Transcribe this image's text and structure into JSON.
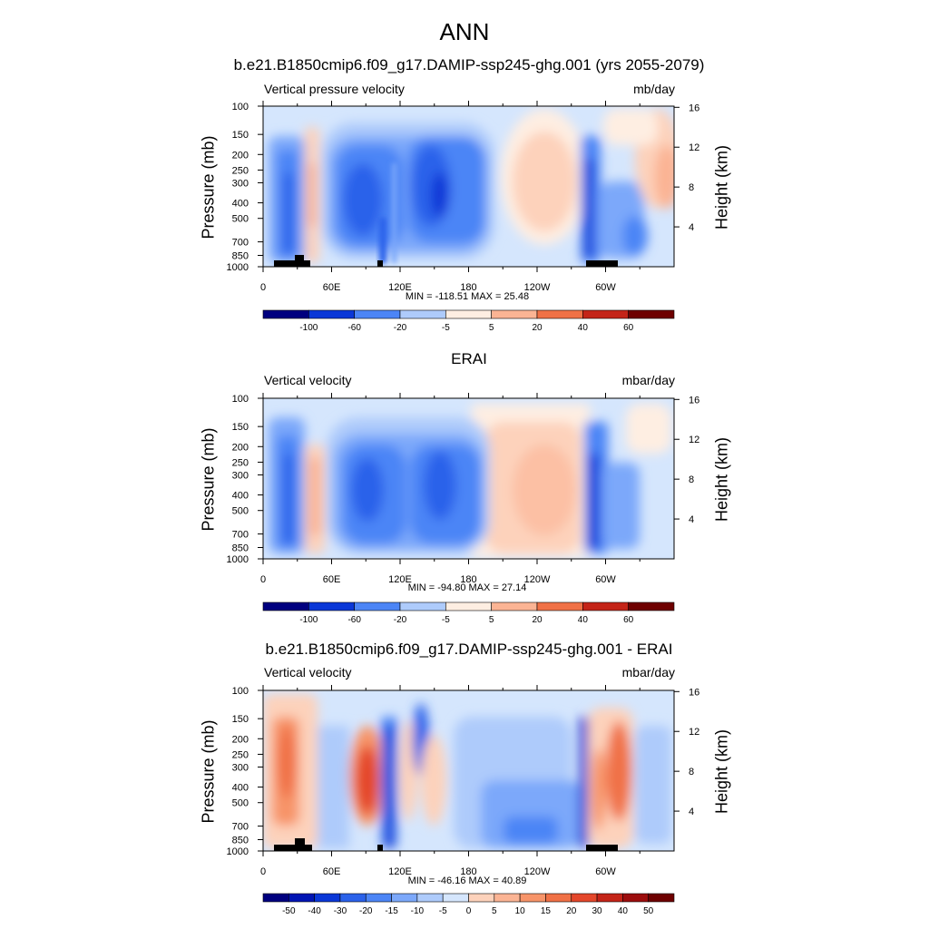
{
  "figure": {
    "title": "ANN",
    "panels": [
      {
        "title": "b.e21.B1850cmip6.f09_g17.DAMIP-ssp245-ghg.001 (yrs 2055-2079)",
        "left_string": "Vertical pressure velocity",
        "right_string": "mb/day",
        "left_axis_label": "Pressure (mb)",
        "right_axis_label": "Height (km)",
        "min_max": "MIN = -118.51  MAX =  25.48",
        "colorbar_labels": [
          "-100",
          "-60",
          "-20",
          "-5",
          "5",
          "20",
          "40",
          "60"
        ],
        "shows_topography": true
      },
      {
        "title": "ERAI",
        "left_string": "Vertical velocity",
        "right_string": "mbar/day",
        "left_axis_label": "Pressure (mb)",
        "right_axis_label": "Height (km)",
        "min_max": "MIN = -94.80  MAX =  27.14",
        "colorbar_labels": [
          "-100",
          "-60",
          "-20",
          "-5",
          "5",
          "20",
          "40",
          "60"
        ],
        "shows_topography": false
      },
      {
        "title": "b.e21.B1850cmip6.f09_g17.DAMIP-ssp245-ghg.001 - ERAI",
        "left_string": "Vertical velocity",
        "right_string": "mbar/day",
        "left_axis_label": "Pressure (mb)",
        "right_axis_label": "Height (km)",
        "min_max": "MIN = -46.16  MAX =  40.89",
        "colorbar_labels": [
          "-50",
          "-40",
          "-30",
          "-20",
          "-15",
          "-10",
          "-5",
          "0",
          "5",
          "10",
          "15",
          "20",
          "30",
          "40",
          "50"
        ],
        "shows_topography": true
      }
    ]
  },
  "chart_data": [
    {
      "type": "heatmap",
      "title": "b.e21.B1850cmip6.f09_g17.DAMIP-ssp245-ghg.001 (yrs 2055-2079)",
      "ylabel": "Pressure (mb)",
      "y2label": "Height (km)",
      "x_ticks": [
        "0",
        "60E",
        "120E",
        "180",
        "120W",
        "60W"
      ],
      "y_ticks": [
        "100",
        "150",
        "200",
        "250",
        "300",
        "400",
        "500",
        "700",
        "850",
        "1000"
      ],
      "y2_ticks": [
        "4",
        "8",
        "12",
        "16"
      ],
      "ylim": [
        1000,
        100
      ],
      "y_scale": "log",
      "colorbar_levels": [
        -100,
        -60,
        -20,
        -5,
        5,
        20,
        40,
        60
      ],
      "min": -118.51,
      "max": 25.48,
      "palette": [
        "#00007f",
        "#0015b4",
        "#0a37d7",
        "#2b62ea",
        "#4c85f6",
        "#7ca8fa",
        "#aecbfb",
        "#d5e6fd",
        "#feeee2",
        "#fdd2bb",
        "#fbb494",
        "#f79469",
        "#f07146",
        "#e4472b",
        "#c42418",
        "#9c0d0d",
        "#6e0000"
      ],
      "features": [
        {
          "lon": 20,
          "lat_band": "upper-mid",
          "value": -40
        },
        {
          "lon": 40,
          "lat_band": "mid",
          "value": 15
        },
        {
          "lon": 95,
          "lat_band": "mid",
          "value": -60
        },
        {
          "lon": 150,
          "lat_band": "mid",
          "value": -80
        },
        {
          "lon": 210,
          "lat_band": "mid",
          "value": 10
        },
        {
          "lon": 285,
          "lat_band": "mid",
          "value": -60
        },
        {
          "lon": 330,
          "lat_band": "upper",
          "value": 10
        }
      ]
    },
    {
      "type": "heatmap",
      "title": "ERAI",
      "ylabel": "Pressure (mb)",
      "y2label": "Height (km)",
      "x_ticks": [
        "0",
        "60E",
        "120E",
        "180",
        "120W",
        "60W"
      ],
      "y_ticks": [
        "100",
        "150",
        "200",
        "250",
        "300",
        "400",
        "500",
        "700",
        "850",
        "1000"
      ],
      "y2_ticks": [
        "4",
        "8",
        "12",
        "16"
      ],
      "ylim": [
        1000,
        100
      ],
      "y_scale": "log",
      "colorbar_levels": [
        -100,
        -60,
        -20,
        -5,
        5,
        20,
        40,
        60
      ],
      "min": -94.8,
      "max": 27.14,
      "palette": [
        "#00007f",
        "#0015b4",
        "#0a37d7",
        "#2b62ea",
        "#4c85f6",
        "#7ca8fa",
        "#aecbfb",
        "#d5e6fd",
        "#feeee2",
        "#fdd2bb",
        "#fbb494",
        "#f79469",
        "#f07146",
        "#e4472b",
        "#c42418",
        "#9c0d0d",
        "#6e0000"
      ],
      "features": [
        {
          "lon": 20,
          "lat_band": "mid",
          "value": -50
        },
        {
          "lon": 40,
          "lat_band": "mid",
          "value": 18
        },
        {
          "lon": 100,
          "lat_band": "mid",
          "value": -60
        },
        {
          "lon": 150,
          "lat_band": "mid",
          "value": -70
        },
        {
          "lon": 230,
          "lat_band": "mid",
          "value": 15
        },
        {
          "lon": 285,
          "lat_band": "lower",
          "value": -70
        }
      ]
    },
    {
      "type": "heatmap",
      "title": "b.e21.B1850cmip6.f09_g17.DAMIP-ssp245-ghg.001 - ERAI",
      "ylabel": "Pressure (mb)",
      "y2label": "Height (km)",
      "x_ticks": [
        "0",
        "60E",
        "120E",
        "180",
        "120W",
        "60W"
      ],
      "y_ticks": [
        "100",
        "150",
        "200",
        "250",
        "300",
        "400",
        "500",
        "700",
        "850",
        "1000"
      ],
      "y2_ticks": [
        "4",
        "8",
        "12",
        "16"
      ],
      "ylim": [
        1000,
        100
      ],
      "y_scale": "log",
      "colorbar_levels": [
        -50,
        -40,
        -30,
        -20,
        -15,
        -10,
        -5,
        0,
        5,
        10,
        15,
        20,
        30,
        40,
        50
      ],
      "min": -46.16,
      "max": 40.89,
      "palette": [
        "#00007f",
        "#0015b4",
        "#0a37d7",
        "#2b62ea",
        "#4c85f6",
        "#7ca8fa",
        "#aecbfb",
        "#d5e6fd",
        "#feeee2",
        "#fdd2bb",
        "#fbb494",
        "#f79469",
        "#f07146",
        "#e4472b",
        "#c42418",
        "#9c0d0d",
        "#6e0000"
      ],
      "features": [
        {
          "lon": 15,
          "lat_band": "mid",
          "value": 20
        },
        {
          "lon": 90,
          "lat_band": "mid",
          "value": 30
        },
        {
          "lon": 110,
          "lat_band": "mid",
          "value": -40
        },
        {
          "lon": 140,
          "lat_band": "upper",
          "value": -25
        },
        {
          "lon": 230,
          "lat_band": "lower",
          "value": -10
        },
        {
          "lon": 275,
          "lat_band": "mid",
          "value": -40
        },
        {
          "lon": 305,
          "lat_band": "mid",
          "value": 30
        }
      ]
    }
  ]
}
